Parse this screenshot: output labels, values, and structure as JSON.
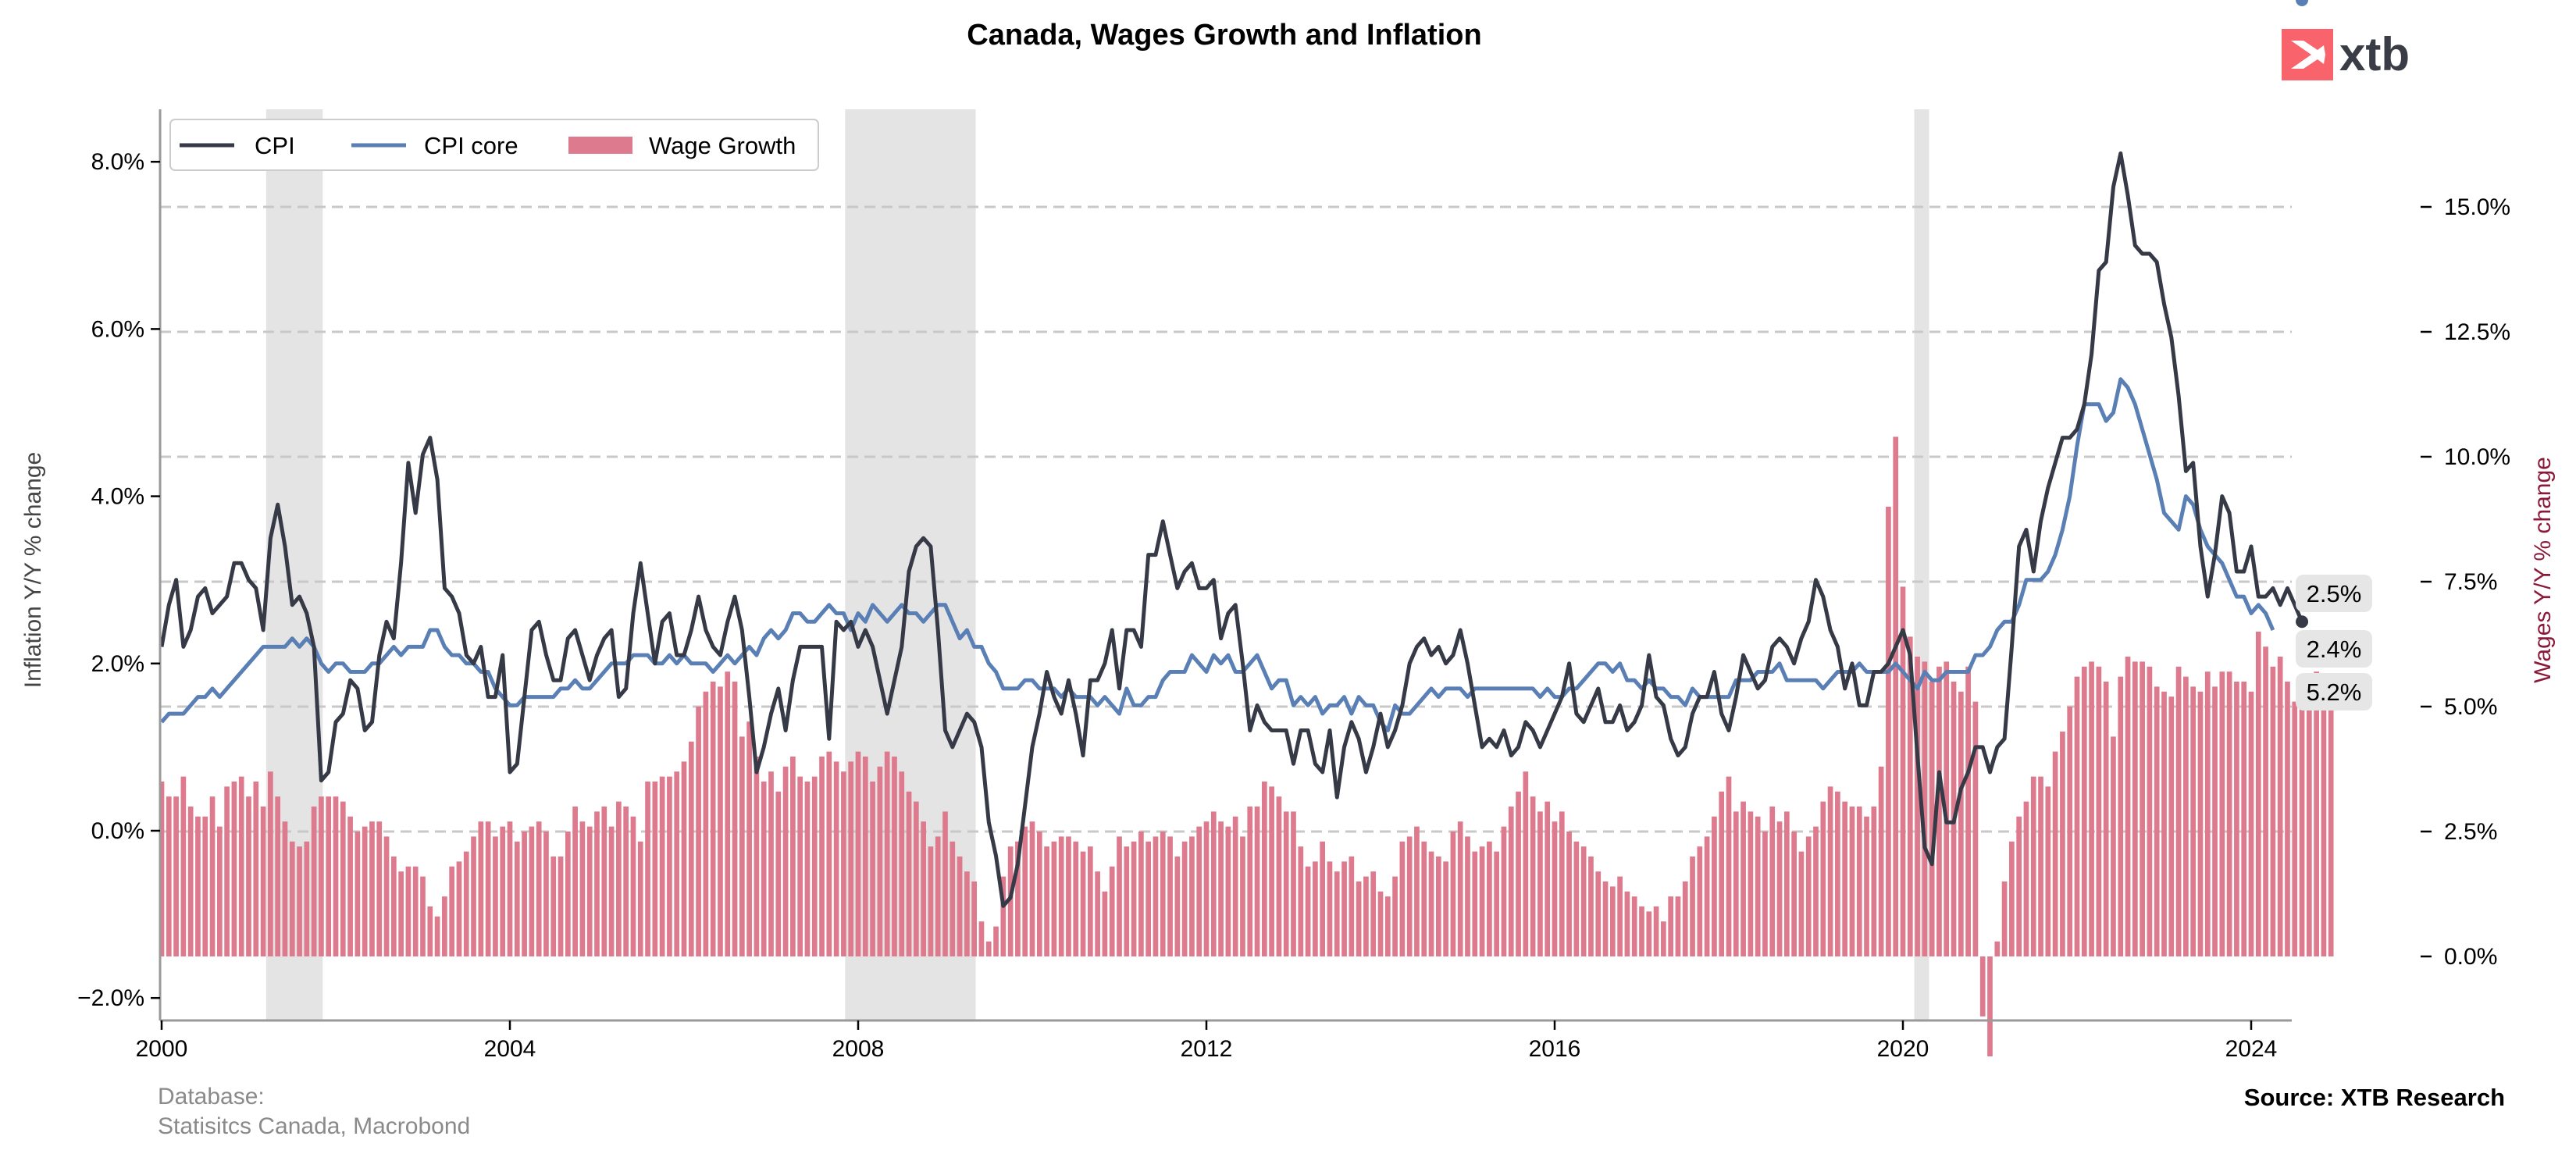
{
  "logo": {
    "text": "xtb",
    "icon": "xtb-x-logo-icon",
    "brand_color": "#f9636b"
  },
  "footer": {
    "database_label": "Database:",
    "database_sources": "Statisitcs Canada, Macrobond",
    "source": "Source: XTB Research"
  },
  "chart_data": {
    "type": "line",
    "title": "Canada, Wages Growth and Inflation",
    "xlabel": "",
    "ylabel": "Inflation Y/Y % change",
    "ylabel_right": "Wages Y/Y % change",
    "xlim": [
      2000.0,
      2024.55
    ],
    "ylim": [
      -2.3,
      8.6
    ],
    "ylim_right": [
      -0.65,
      16.4
    ],
    "x_ticks": [
      "2000",
      "2004",
      "2008",
      "2012",
      "2016",
      "2020",
      "2024"
    ],
    "x_tick_values": [
      2000,
      2004,
      2008,
      2012,
      2016,
      2020,
      2024
    ],
    "y_ticks": [
      "−2.0%",
      "0.0%",
      "2.0%",
      "4.0%",
      "6.0%",
      "8.0%"
    ],
    "y_tick_values": [
      -2,
      0,
      2,
      4,
      6,
      8
    ],
    "y_right_ticks": [
      "0.0%",
      "2.5%",
      "5.0%",
      "7.5%",
      "10.0%",
      "12.5%",
      "15.0%"
    ],
    "y_right_tick_values": [
      0,
      2.5,
      5,
      7.5,
      10,
      12.5,
      15
    ],
    "gridlines_right": [
      2.5,
      5,
      7.5,
      10,
      12.5,
      15
    ],
    "grid": "horizontal dashed (right axis)",
    "legend_position": "top-left",
    "recession_shading": [
      {
        "start": 2001.2,
        "end": 2001.85
      },
      {
        "start": 2007.85,
        "end": 2009.35
      },
      {
        "start": 2020.13,
        "end": 2020.3
      }
    ],
    "start": "2000-01",
    "frequency": "monthly",
    "series": [
      {
        "name": "CPI",
        "axis": "left",
        "style": "line",
        "color": "#363a46",
        "last_value_label": "2.5%",
        "values": [
          2.2,
          2.7,
          3.0,
          2.2,
          2.4,
          2.8,
          2.9,
          2.6,
          2.7,
          2.8,
          3.2,
          3.2,
          3.0,
          2.9,
          2.4,
          3.5,
          3.9,
          3.4,
          2.7,
          2.8,
          2.6,
          2.2,
          0.6,
          0.7,
          1.3,
          1.4,
          1.8,
          1.7,
          1.2,
          1.3,
          2.1,
          2.5,
          2.3,
          3.2,
          4.4,
          3.8,
          4.5,
          4.7,
          4.2,
          2.9,
          2.8,
          2.6,
          2.1,
          2.0,
          2.2,
          1.6,
          1.6,
          2.1,
          0.7,
          0.8,
          1.6,
          2.4,
          2.5,
          2.1,
          1.8,
          1.8,
          2.3,
          2.4,
          2.1,
          1.8,
          2.1,
          2.3,
          2.4,
          1.6,
          1.7,
          2.6,
          3.2,
          2.6,
          2.0,
          2.5,
          2.6,
          2.1,
          2.1,
          2.4,
          2.8,
          2.4,
          2.2,
          2.1,
          2.5,
          2.8,
          2.4,
          1.6,
          0.7,
          1.0,
          1.4,
          1.7,
          1.2,
          1.8,
          2.2,
          2.2,
          2.2,
          2.2,
          1.1,
          2.5,
          2.4,
          2.5,
          2.2,
          2.4,
          2.2,
          1.8,
          1.4,
          1.8,
          2.2,
          3.1,
          3.4,
          3.5,
          3.4,
          2.4,
          1.2,
          1.0,
          1.2,
          1.4,
          1.3,
          1.0,
          0.1,
          -0.3,
          -0.9,
          -0.8,
          -0.4,
          0.3,
          1.0,
          1.4,
          1.9,
          1.6,
          1.4,
          1.8,
          1.4,
          0.9,
          1.8,
          1.8,
          2.0,
          2.4,
          1.7,
          2.4,
          2.4,
          2.2,
          3.3,
          3.3,
          3.7,
          3.3,
          2.9,
          3.1,
          3.2,
          2.9,
          2.9,
          3.0,
          2.3,
          2.6,
          2.7,
          2.0,
          1.2,
          1.5,
          1.3,
          1.2,
          1.2,
          1.2,
          0.8,
          1.2,
          1.2,
          0.8,
          0.7,
          1.2,
          0.4,
          1.0,
          1.3,
          1.1,
          0.7,
          1.0,
          1.4,
          1.0,
          1.2,
          1.5,
          2.0,
          2.2,
          2.3,
          2.1,
          2.2,
          2.0,
          2.1,
          2.4,
          2.0,
          1.5,
          1.0,
          1.1,
          1.0,
          1.2,
          0.9,
          1.0,
          1.3,
          1.2,
          1.0,
          1.2,
          1.4,
          1.6,
          2.0,
          1.4,
          1.3,
          1.5,
          1.7,
          1.3,
          1.3,
          1.5,
          1.2,
          1.3,
          1.5,
          2.1,
          1.6,
          1.5,
          1.1,
          0.9,
          1.0,
          1.4,
          1.6,
          1.6,
          1.9,
          1.4,
          1.2,
          1.6,
          2.1,
          1.9,
          1.7,
          1.8,
          2.2,
          2.3,
          2.2,
          2.0,
          2.3,
          2.5,
          3.0,
          2.8,
          2.4,
          2.2,
          1.7,
          2.0,
          1.5,
          1.5,
          1.9,
          1.9,
          2.0,
          2.2,
          2.4,
          2.1,
          0.9,
          -0.2,
          -0.4,
          0.7,
          0.1,
          0.1,
          0.5,
          0.7,
          1.0,
          1.0,
          0.7,
          1.0,
          1.1,
          2.2,
          3.4,
          3.6,
          3.1,
          3.7,
          4.1,
          4.4,
          4.7,
          4.7,
          4.8,
          5.1,
          5.7,
          6.7,
          6.8,
          7.7,
          8.1,
          7.6,
          7.0,
          6.9,
          6.9,
          6.8,
          6.3,
          5.9,
          5.2,
          4.3,
          4.4,
          3.4,
          2.8,
          3.3,
          4.0,
          3.8,
          3.1,
          3.1,
          3.4,
          2.8,
          2.8,
          2.9,
          2.7,
          2.9,
          2.7,
          2.5
        ]
      },
      {
        "name": "CPI core",
        "axis": "left",
        "style": "line",
        "color": "#5a7fb5",
        "last_value_label": "2.4%",
        "values": [
          1.3,
          1.4,
          1.4,
          1.4,
          1.5,
          1.6,
          1.6,
          1.7,
          1.6,
          1.7,
          1.8,
          1.9,
          2.0,
          2.1,
          2.2,
          2.2,
          2.2,
          2.2,
          2.3,
          2.2,
          2.3,
          2.2,
          2.0,
          1.9,
          2.0,
          2.0,
          1.9,
          1.9,
          1.9,
          2.0,
          2.0,
          2.1,
          2.2,
          2.1,
          2.2,
          2.2,
          2.2,
          2.4,
          2.4,
          2.2,
          2.1,
          2.1,
          2.0,
          2.0,
          1.9,
          1.9,
          1.7,
          1.6,
          1.5,
          1.5,
          1.6,
          1.6,
          1.6,
          1.6,
          1.6,
          1.7,
          1.7,
          1.8,
          1.7,
          1.7,
          1.8,
          1.9,
          2.0,
          2.0,
          2.0,
          2.1,
          2.1,
          2.1,
          2.0,
          2.0,
          2.1,
          2.0,
          2.1,
          2.0,
          2.0,
          2.0,
          1.9,
          2.0,
          2.1,
          2.0,
          2.1,
          2.2,
          2.1,
          2.3,
          2.4,
          2.3,
          2.4,
          2.6,
          2.6,
          2.5,
          2.5,
          2.6,
          2.7,
          2.6,
          2.6,
          2.4,
          2.6,
          2.5,
          2.7,
          2.6,
          2.5,
          2.6,
          2.7,
          2.6,
          2.6,
          2.5,
          2.6,
          2.7,
          2.7,
          2.5,
          2.3,
          2.4,
          2.2,
          2.2,
          2.0,
          1.9,
          1.7,
          1.7,
          1.7,
          1.8,
          1.8,
          1.7,
          1.7,
          1.7,
          1.6,
          1.7,
          1.6,
          1.6,
          1.6,
          1.5,
          1.6,
          1.5,
          1.4,
          1.7,
          1.5,
          1.5,
          1.6,
          1.6,
          1.8,
          1.9,
          1.9,
          1.9,
          2.1,
          2.0,
          1.9,
          2.1,
          2.0,
          2.1,
          1.9,
          1.9,
          2.0,
          2.1,
          1.9,
          1.7,
          1.8,
          1.8,
          1.5,
          1.6,
          1.5,
          1.6,
          1.4,
          1.5,
          1.5,
          1.6,
          1.4,
          1.6,
          1.5,
          1.5,
          1.3,
          1.2,
          1.5,
          1.4,
          1.4,
          1.5,
          1.6,
          1.7,
          1.6,
          1.7,
          1.7,
          1.7,
          1.6,
          1.7,
          1.7,
          1.7,
          1.7,
          1.7,
          1.7,
          1.7,
          1.7,
          1.7,
          1.6,
          1.7,
          1.6,
          1.6,
          1.7,
          1.7,
          1.8,
          1.9,
          2.0,
          2.0,
          1.9,
          2.0,
          1.8,
          1.8,
          1.7,
          1.8,
          1.7,
          1.7,
          1.6,
          1.6,
          1.5,
          1.7,
          1.6,
          1.6,
          1.6,
          1.6,
          1.6,
          1.8,
          1.8,
          1.8,
          1.9,
          1.9,
          1.9,
          2.0,
          1.8,
          1.8,
          1.8,
          1.8,
          1.8,
          1.7,
          1.8,
          1.9,
          1.9,
          1.9,
          2.0,
          1.9,
          1.9,
          1.9,
          1.9,
          2.0,
          1.9,
          1.8,
          1.7,
          1.9,
          1.8,
          1.8,
          1.9,
          1.9,
          1.9,
          1.9,
          2.1,
          2.1,
          2.2,
          2.4,
          2.5,
          2.5,
          2.7,
          3.0,
          3.0,
          3.0,
          3.1,
          3.3,
          3.6,
          4.0,
          4.6,
          5.1,
          5.1,
          5.1,
          4.9,
          5.0,
          5.4,
          5.3,
          5.1,
          4.8,
          4.5,
          4.2,
          3.8,
          3.7,
          3.6,
          4.0,
          3.9,
          3.6,
          3.4,
          3.3,
          3.2,
          3.0,
          2.8,
          2.8,
          2.6,
          2.7,
          2.6,
          2.4
        ]
      },
      {
        "name": "Wage Growth",
        "axis": "right",
        "style": "bar",
        "color": "#de7a8d",
        "last_value_label": "5.2%",
        "values": [
          3.5,
          3.2,
          3.2,
          3.6,
          3.0,
          2.8,
          2.8,
          3.2,
          2.6,
          3.4,
          3.5,
          3.6,
          3.2,
          3.5,
          3.0,
          3.7,
          3.2,
          2.7,
          2.3,
          2.2,
          2.3,
          3.0,
          3.2,
          3.2,
          3.2,
          3.1,
          2.8,
          2.5,
          2.6,
          2.7,
          2.7,
          2.4,
          2.0,
          1.7,
          1.8,
          1.8,
          1.6,
          1.0,
          0.8,
          1.2,
          1.8,
          1.9,
          2.1,
          2.4,
          2.7,
          2.7,
          2.4,
          2.6,
          2.7,
          2.3,
          2.5,
          2.6,
          2.7,
          2.5,
          2.0,
          2.0,
          2.5,
          3.0,
          2.7,
          2.6,
          2.9,
          3.0,
          2.6,
          3.1,
          3.0,
          2.8,
          2.3,
          3.5,
          3.5,
          3.6,
          3.6,
          3.7,
          3.9,
          4.3,
          5.0,
          5.3,
          5.5,
          5.4,
          5.7,
          5.5,
          4.4,
          4.7,
          4.0,
          3.5,
          3.7,
          3.3,
          3.8,
          4.0,
          3.6,
          3.5,
          3.6,
          4.0,
          4.1,
          3.9,
          3.7,
          3.9,
          4.1,
          4.0,
          3.5,
          3.8,
          4.1,
          4.0,
          3.7,
          3.3,
          3.1,
          2.7,
          2.2,
          2.4,
          2.9,
          2.3,
          2.0,
          1.7,
          1.5,
          0.7,
          0.3,
          0.6,
          1.6,
          2.2,
          2.3,
          2.6,
          2.7,
          2.5,
          2.2,
          2.3,
          2.4,
          2.4,
          2.3,
          2.1,
          2.2,
          1.7,
          1.3,
          1.8,
          2.4,
          2.2,
          2.3,
          2.5,
          2.3,
          2.4,
          2.5,
          2.4,
          2.0,
          2.3,
          2.4,
          2.6,
          2.7,
          2.9,
          2.7,
          2.6,
          2.8,
          2.4,
          3.0,
          3.0,
          3.5,
          3.4,
          3.2,
          2.9,
          2.9,
          2.2,
          1.8,
          1.9,
          2.3,
          1.9,
          1.7,
          1.9,
          2.0,
          1.5,
          1.6,
          1.7,
          1.3,
          1.2,
          1.6,
          2.3,
          2.4,
          2.6,
          2.3,
          2.1,
          2.0,
          1.9,
          2.5,
          2.7,
          2.4,
          2.1,
          2.2,
          2.3,
          2.1,
          2.6,
          3.0,
          3.3,
          3.7,
          3.2,
          2.9,
          3.1,
          2.7,
          2.9,
          2.5,
          2.3,
          2.2,
          2.0,
          1.7,
          1.5,
          1.4,
          1.6,
          1.3,
          1.2,
          1.0,
          0.9,
          1.0,
          0.7,
          1.2,
          1.2,
          1.5,
          2.0,
          2.2,
          2.4,
          2.8,
          3.3,
          3.6,
          2.9,
          3.1,
          2.9,
          2.8,
          2.5,
          3.0,
          2.7,
          2.9,
          2.5,
          2.1,
          2.4,
          2.6,
          3.1,
          3.4,
          3.3,
          3.1,
          3.0,
          3.0,
          2.8,
          3.0,
          3.8,
          9.0,
          10.4,
          7.4,
          6.4,
          6.0,
          5.9,
          5.5,
          5.8,
          5.9,
          5.5,
          5.3,
          5.8,
          5.1,
          -1.2,
          -2.0,
          0.3,
          1.5,
          2.3,
          2.8,
          3.1,
          3.6,
          3.6,
          3.4,
          4.1,
          4.5,
          5.0,
          5.6,
          5.8,
          5.9,
          5.8,
          5.5,
          4.4,
          5.6,
          6.0,
          5.9,
          5.9,
          5.8,
          5.4,
          5.3,
          5.2,
          5.8,
          5.6,
          5.4,
          5.3,
          5.7,
          5.4,
          5.7,
          5.7,
          5.5,
          5.5,
          5.3,
          6.5,
          6.2,
          5.8,
          6.0,
          5.5,
          5.1,
          5.1,
          5.5,
          5.7,
          5.4,
          5.2
        ]
      }
    ]
  }
}
